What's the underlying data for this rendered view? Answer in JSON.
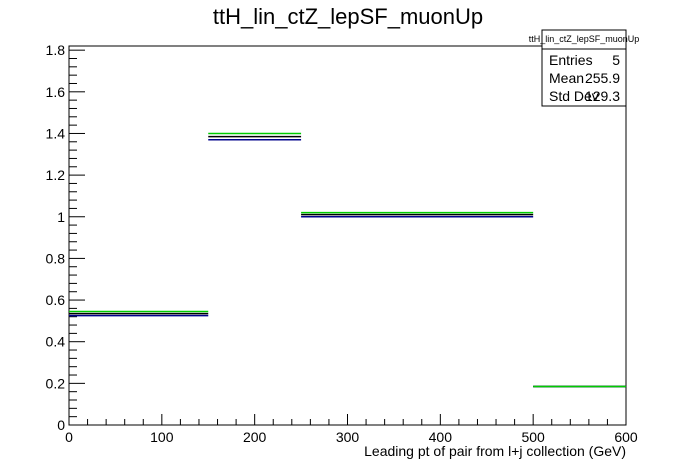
{
  "chart_data": {
    "type": "step",
    "title": "ttH_lin_ctZ_lepSF_muonUp",
    "xlabel": "Leading pt of pair from l+j collection (GeV)",
    "ylabel": "",
    "xlim": [
      0,
      600
    ],
    "ylim": [
      0,
      1.82
    ],
    "xticks": [
      0,
      100,
      200,
      300,
      400,
      500,
      600
    ],
    "yticks": [
      0,
      0.2,
      0.4,
      0.6,
      0.8,
      1,
      1.2,
      1.4,
      1.6,
      1.8
    ],
    "bin_edges": [
      0,
      150,
      250,
      500,
      600
    ],
    "series": [
      {
        "color": "#00008b",
        "values": [
          0.525,
          1.37,
          1.0,
          0.185
        ]
      },
      {
        "color": "#000000",
        "values": [
          0.535,
          1.385,
          1.01,
          0.185
        ]
      },
      {
        "color": "#00cc00",
        "values": [
          0.545,
          1.4,
          1.02,
          0.185
        ]
      }
    ],
    "stats": {
      "name": "ttH_lin_ctZ_lepSF_muonUp",
      "rows": [
        {
          "label": "Entries",
          "value": "5"
        },
        {
          "label": "Mean",
          "value": "255.9"
        },
        {
          "label": "Std Dev",
          "value": "129.3"
        }
      ]
    }
  }
}
